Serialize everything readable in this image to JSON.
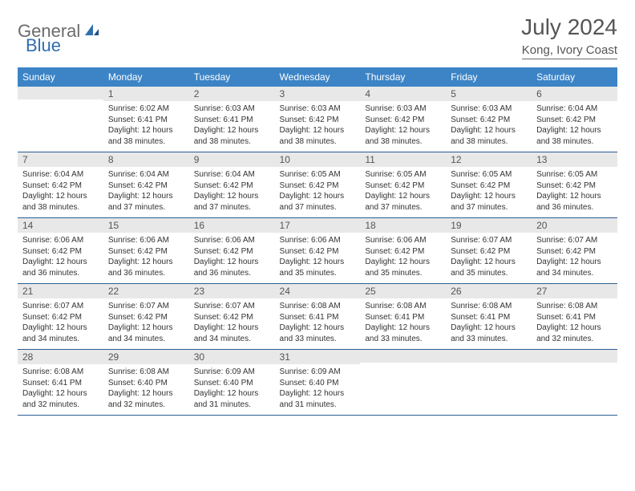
{
  "brand": {
    "first": "General",
    "second": "Blue"
  },
  "title": "July 2024",
  "location": "Kong, Ivory Coast",
  "colors": {
    "header_bg": "#3c84c6",
    "header_text": "#ffffff",
    "daynum_bg": "#e8e8e8",
    "border": "#2b5f93",
    "logo_gray": "#6b6b6b",
    "logo_blue": "#2f6fb0"
  },
  "weekdays": [
    "Sunday",
    "Monday",
    "Tuesday",
    "Wednesday",
    "Thursday",
    "Friday",
    "Saturday"
  ],
  "weeks": [
    [
      {
        "n": "",
        "sunrise": "",
        "sunset": "",
        "daylight": ""
      },
      {
        "n": "1",
        "sunrise": "Sunrise: 6:02 AM",
        "sunset": "Sunset: 6:41 PM",
        "daylight": "Daylight: 12 hours and 38 minutes."
      },
      {
        "n": "2",
        "sunrise": "Sunrise: 6:03 AM",
        "sunset": "Sunset: 6:41 PM",
        "daylight": "Daylight: 12 hours and 38 minutes."
      },
      {
        "n": "3",
        "sunrise": "Sunrise: 6:03 AM",
        "sunset": "Sunset: 6:42 PM",
        "daylight": "Daylight: 12 hours and 38 minutes."
      },
      {
        "n": "4",
        "sunrise": "Sunrise: 6:03 AM",
        "sunset": "Sunset: 6:42 PM",
        "daylight": "Daylight: 12 hours and 38 minutes."
      },
      {
        "n": "5",
        "sunrise": "Sunrise: 6:03 AM",
        "sunset": "Sunset: 6:42 PM",
        "daylight": "Daylight: 12 hours and 38 minutes."
      },
      {
        "n": "6",
        "sunrise": "Sunrise: 6:04 AM",
        "sunset": "Sunset: 6:42 PM",
        "daylight": "Daylight: 12 hours and 38 minutes."
      }
    ],
    [
      {
        "n": "7",
        "sunrise": "Sunrise: 6:04 AM",
        "sunset": "Sunset: 6:42 PM",
        "daylight": "Daylight: 12 hours and 38 minutes."
      },
      {
        "n": "8",
        "sunrise": "Sunrise: 6:04 AM",
        "sunset": "Sunset: 6:42 PM",
        "daylight": "Daylight: 12 hours and 37 minutes."
      },
      {
        "n": "9",
        "sunrise": "Sunrise: 6:04 AM",
        "sunset": "Sunset: 6:42 PM",
        "daylight": "Daylight: 12 hours and 37 minutes."
      },
      {
        "n": "10",
        "sunrise": "Sunrise: 6:05 AM",
        "sunset": "Sunset: 6:42 PM",
        "daylight": "Daylight: 12 hours and 37 minutes."
      },
      {
        "n": "11",
        "sunrise": "Sunrise: 6:05 AM",
        "sunset": "Sunset: 6:42 PM",
        "daylight": "Daylight: 12 hours and 37 minutes."
      },
      {
        "n": "12",
        "sunrise": "Sunrise: 6:05 AM",
        "sunset": "Sunset: 6:42 PM",
        "daylight": "Daylight: 12 hours and 37 minutes."
      },
      {
        "n": "13",
        "sunrise": "Sunrise: 6:05 AM",
        "sunset": "Sunset: 6:42 PM",
        "daylight": "Daylight: 12 hours and 36 minutes."
      }
    ],
    [
      {
        "n": "14",
        "sunrise": "Sunrise: 6:06 AM",
        "sunset": "Sunset: 6:42 PM",
        "daylight": "Daylight: 12 hours and 36 minutes."
      },
      {
        "n": "15",
        "sunrise": "Sunrise: 6:06 AM",
        "sunset": "Sunset: 6:42 PM",
        "daylight": "Daylight: 12 hours and 36 minutes."
      },
      {
        "n": "16",
        "sunrise": "Sunrise: 6:06 AM",
        "sunset": "Sunset: 6:42 PM",
        "daylight": "Daylight: 12 hours and 36 minutes."
      },
      {
        "n": "17",
        "sunrise": "Sunrise: 6:06 AM",
        "sunset": "Sunset: 6:42 PM",
        "daylight": "Daylight: 12 hours and 35 minutes."
      },
      {
        "n": "18",
        "sunrise": "Sunrise: 6:06 AM",
        "sunset": "Sunset: 6:42 PM",
        "daylight": "Daylight: 12 hours and 35 minutes."
      },
      {
        "n": "19",
        "sunrise": "Sunrise: 6:07 AM",
        "sunset": "Sunset: 6:42 PM",
        "daylight": "Daylight: 12 hours and 35 minutes."
      },
      {
        "n": "20",
        "sunrise": "Sunrise: 6:07 AM",
        "sunset": "Sunset: 6:42 PM",
        "daylight": "Daylight: 12 hours and 34 minutes."
      }
    ],
    [
      {
        "n": "21",
        "sunrise": "Sunrise: 6:07 AM",
        "sunset": "Sunset: 6:42 PM",
        "daylight": "Daylight: 12 hours and 34 minutes."
      },
      {
        "n": "22",
        "sunrise": "Sunrise: 6:07 AM",
        "sunset": "Sunset: 6:42 PM",
        "daylight": "Daylight: 12 hours and 34 minutes."
      },
      {
        "n": "23",
        "sunrise": "Sunrise: 6:07 AM",
        "sunset": "Sunset: 6:42 PM",
        "daylight": "Daylight: 12 hours and 34 minutes."
      },
      {
        "n": "24",
        "sunrise": "Sunrise: 6:08 AM",
        "sunset": "Sunset: 6:41 PM",
        "daylight": "Daylight: 12 hours and 33 minutes."
      },
      {
        "n": "25",
        "sunrise": "Sunrise: 6:08 AM",
        "sunset": "Sunset: 6:41 PM",
        "daylight": "Daylight: 12 hours and 33 minutes."
      },
      {
        "n": "26",
        "sunrise": "Sunrise: 6:08 AM",
        "sunset": "Sunset: 6:41 PM",
        "daylight": "Daylight: 12 hours and 33 minutes."
      },
      {
        "n": "27",
        "sunrise": "Sunrise: 6:08 AM",
        "sunset": "Sunset: 6:41 PM",
        "daylight": "Daylight: 12 hours and 32 minutes."
      }
    ],
    [
      {
        "n": "28",
        "sunrise": "Sunrise: 6:08 AM",
        "sunset": "Sunset: 6:41 PM",
        "daylight": "Daylight: 12 hours and 32 minutes."
      },
      {
        "n": "29",
        "sunrise": "Sunrise: 6:08 AM",
        "sunset": "Sunset: 6:40 PM",
        "daylight": "Daylight: 12 hours and 32 minutes."
      },
      {
        "n": "30",
        "sunrise": "Sunrise: 6:09 AM",
        "sunset": "Sunset: 6:40 PM",
        "daylight": "Daylight: 12 hours and 31 minutes."
      },
      {
        "n": "31",
        "sunrise": "Sunrise: 6:09 AM",
        "sunset": "Sunset: 6:40 PM",
        "daylight": "Daylight: 12 hours and 31 minutes."
      },
      {
        "n": "",
        "sunrise": "",
        "sunset": "",
        "daylight": ""
      },
      {
        "n": "",
        "sunrise": "",
        "sunset": "",
        "daylight": ""
      },
      {
        "n": "",
        "sunrise": "",
        "sunset": "",
        "daylight": ""
      }
    ]
  ]
}
